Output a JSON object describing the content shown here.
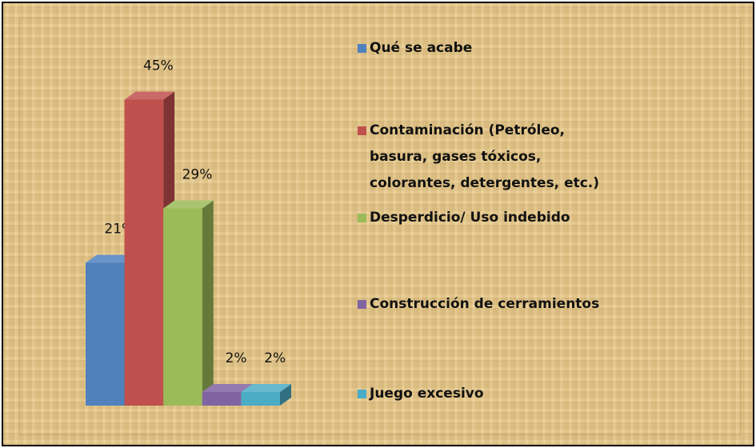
{
  "chart_data": {
    "type": "bar3d",
    "categories": [
      "Qué se acabe",
      "Contaminación (Petróleo, basura, gases tóxicos,  colorantes, detergentes, etc.)",
      "Desperdicio/ Uso indebido",
      "Construcción de cerramientos",
      "Juego excesivo"
    ],
    "values": [
      21,
      45,
      29,
      2,
      2
    ],
    "value_labels": [
      "21%",
      "45%",
      "29%",
      "2%",
      "2%"
    ],
    "colors": [
      "#4f81bd",
      "#c0504d",
      "#9bbb59",
      "#8064a2",
      "#4bacc6"
    ],
    "legend": "right"
  }
}
